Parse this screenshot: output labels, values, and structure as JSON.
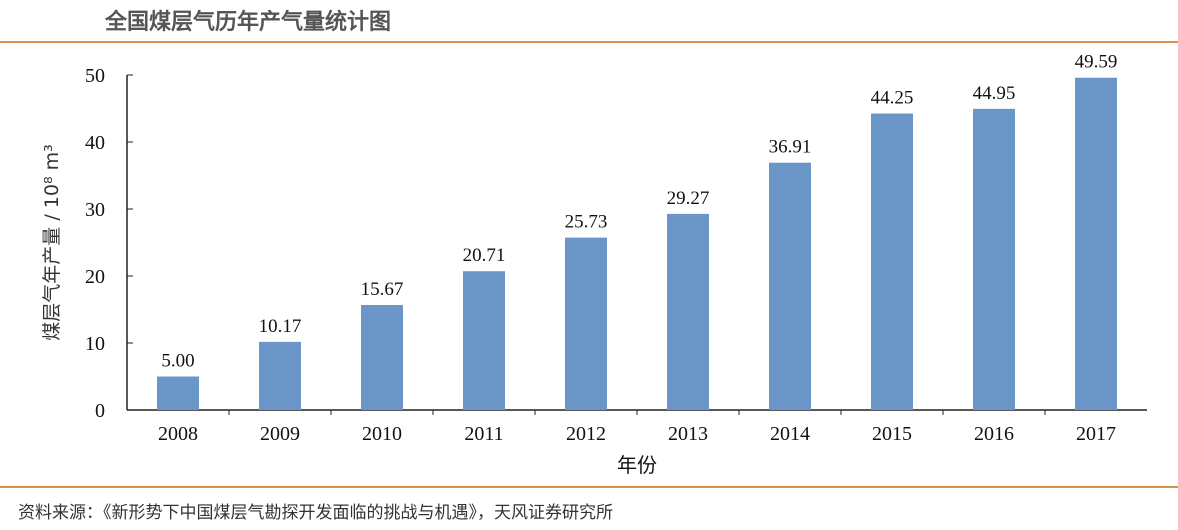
{
  "title": "全国煤层气历年产气量统计图",
  "source": "资料来源：《新形势下中国煤层气勘探开发面临的挑战与机遇》，天风证券研究所",
  "colors": {
    "bar": "#6b96c8",
    "rule": "#d9914e"
  },
  "chart_data": {
    "type": "bar",
    "title": "全国煤层气历年产气量统计图",
    "categories": [
      "2008",
      "2009",
      "2010",
      "2011",
      "2012",
      "2013",
      "2014",
      "2015",
      "2016",
      "2017"
    ],
    "values": [
      5.0,
      10.17,
      15.67,
      20.71,
      25.73,
      29.27,
      36.91,
      44.25,
      44.95,
      49.59
    ],
    "labels": [
      "5.00",
      "10.17",
      "15.67",
      "20.71",
      "25.73",
      "29.27",
      "36.91",
      "44.25",
      "44.95",
      "49.59"
    ],
    "xlabel": "年份",
    "ylabel": "煤层气年产量 / 10⁸ m³",
    "ylim": [
      0,
      50
    ],
    "yticks": [
      0,
      10,
      20,
      30,
      40,
      50
    ],
    "grid": false
  }
}
